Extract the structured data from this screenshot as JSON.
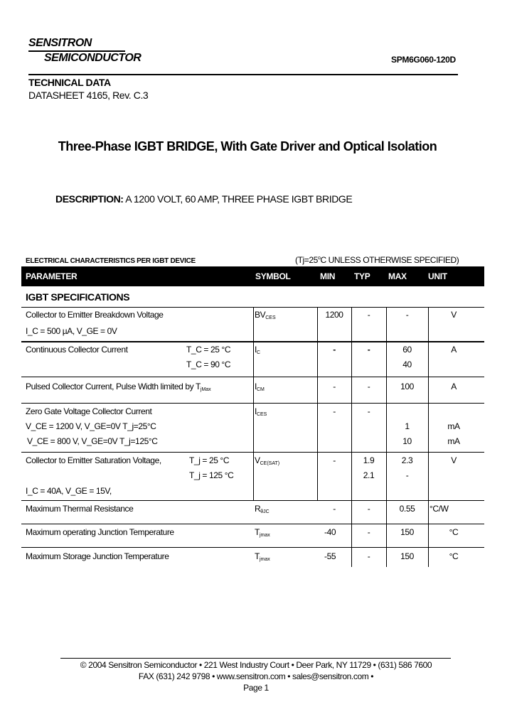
{
  "header": {
    "company_line1": "SENSITRON",
    "company_line2": "SEMICONDUCTOR",
    "part_number": "SPM6G060-120D",
    "technical_data": "TECHNICAL DATA",
    "datasheet": "DATASHEET 4165, Rev. C.3"
  },
  "title": "Three-Phase IGBT BRIDGE, With Gate Driver and Optical Isolation",
  "description": {
    "label": "DESCRIPTION:",
    "text": "A 1200 VOLT, 60 AMP, THREE PHASE IGBT BRIDGE"
  },
  "table": {
    "caption": "ELECTRICAL CHARACTERISTICS PER IGBT DEVICE",
    "condition": {
      "pre": "(Tj=25",
      "sup": "o",
      "post": "C UNLESS OTHERWISE SPECIFIED)"
    },
    "headers": [
      "PARAMETER",
      "SYMBOL",
      "MIN",
      "TYP",
      "MAX",
      "UNIT"
    ],
    "section": "IGBT SPECIFICATIONS",
    "rows": [
      {
        "param": "Collector to Emitter Breakdown Voltage",
        "cond": "I_C = 500 µA, V_GE = 0V",
        "sym": "BV",
        "sym_sub": "CES",
        "min": "1200",
        "typ": "-",
        "max": "-",
        "unit": "V"
      },
      {
        "param": "Continuous Collector Current",
        "cond1": "T_C = 25 °C",
        "cond2": "T_C = 90 °C",
        "sym": "I",
        "sym_sub": "C",
        "min": "-",
        "typ": "-",
        "max1": "60",
        "max2": "40",
        "unit": "A"
      },
      {
        "param": "Pulsed Collector Current, Pulse Width limited by T",
        "param_sub": "jMax",
        "sym": "I",
        "sym_sub": "CM",
        "min": "-",
        "typ": "-",
        "max": "100",
        "unit": "A"
      },
      {
        "param": "Zero Gate Voltage Collector Current",
        "cond1": "V_CE = 1200 V,  V_GE=0V  T_j=25°C",
        "cond2": "V_CE = 800 V,  V_GE=0V  T_j=125°C",
        "sym": "I",
        "sym_sub": "CES",
        "min": "-",
        "typ": "-",
        "max1": "1",
        "max2": "10",
        "unit1": "mA",
        "unit2": "mA"
      },
      {
        "param": "Collector to Emitter Saturation Voltage,",
        "cond1": "T_j = 25 °C",
        "cond2": "T_j = 125 °C",
        "cond3": "I_C = 40A, V_GE = 15V,",
        "sym": "V",
        "sym_sub": "CE(SAT)",
        "min": "-",
        "typ1": "1.9",
        "typ2": "2.1",
        "max1": "2.3",
        "max2": "-",
        "unit": "V"
      },
      {
        "param": "Maximum Thermal Resistance",
        "sym": "R",
        "sym_sub": "θJC",
        "min": "-",
        "typ": "-",
        "max": "0.55",
        "unit": "°C/W"
      },
      {
        "param": "Maximum operating Junction Temperature",
        "sym": "T",
        "sym_sub": "jmax",
        "min": "-40",
        "typ": "-",
        "max": "150",
        "unit": "°C"
      },
      {
        "param": "Maximum  Storage Junction Temperature",
        "sym": "T",
        "sym_sub": "jmax",
        "min": "-55",
        "typ": "-",
        "max": "150",
        "unit": "°C"
      }
    ]
  },
  "footer": {
    "line1": "© 2004 Sensitron Semiconductor •  221 West Industry Court  • Deer Park, NY  11729  • (631) 586 7600",
    "line2": "FAX (631) 242 9798 • www.sensitron.com • sales@sensitron.com •",
    "page": "Page 1"
  }
}
